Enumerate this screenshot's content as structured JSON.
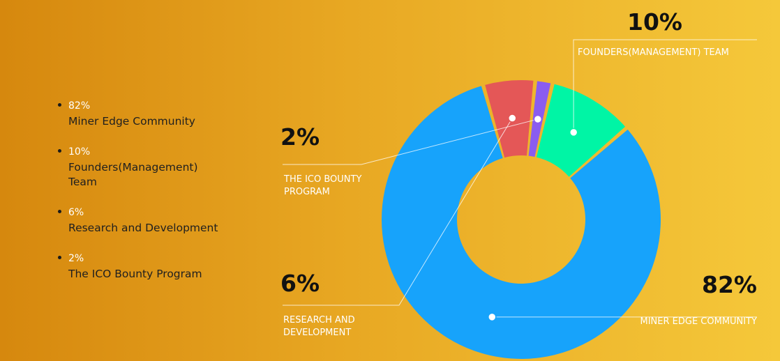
{
  "legend": [
    {
      "percent": "82%",
      "label": "Miner Edge Community"
    },
    {
      "percent": "10%",
      "label": "Founders(Management) Team"
    },
    {
      "percent": "6%",
      "label": "Research and Development"
    },
    {
      "percent": "2%",
      "label": "The ICO Bounty Program"
    }
  ],
  "chart_data": {
    "type": "pie",
    "categories": [
      "MINER EDGE COMMUNITY",
      "RESEARCH AND DEVELOPMENT",
      "THE ICO BOUNTY PROGRAM",
      "FOUNDERS(MANAGEMENT) TEAM"
    ],
    "values": [
      82,
      6,
      2,
      10
    ],
    "labels": [
      "82%",
      "6%",
      "2%",
      "10%"
    ],
    "colors": [
      "#17a3fb",
      "#e45757",
      "#8a5cf0",
      "#00f5a5"
    ]
  }
}
